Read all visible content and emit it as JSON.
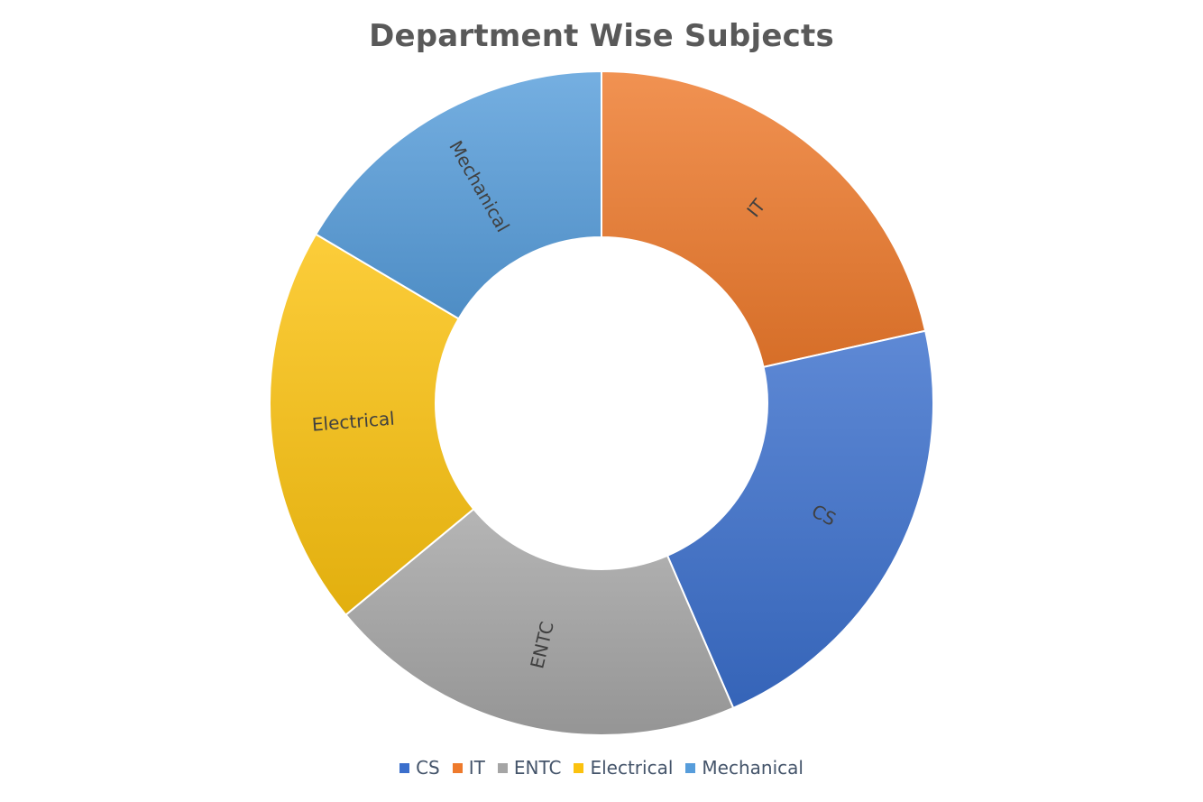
{
  "chart_data": {
    "type": "pie",
    "variant": "donut",
    "title": "Department Wise Subjects",
    "categories": [
      "CS",
      "IT",
      "ENTC",
      "Electrical",
      "Mechanical"
    ],
    "values": [
      22,
      21.5,
      20.5,
      19.5,
      16.5
    ],
    "colors": [
      "#3b6fcc",
      "#ee7a2c",
      "#a5a5a5",
      "#fbc20f",
      "#579ddb"
    ],
    "slice_order": [
      "IT",
      "CS",
      "ENTC",
      "Electrical",
      "Mechanical"
    ],
    "data_labels": [
      "IT",
      "CS",
      "ENTC",
      "Electrical",
      "Mechanical"
    ],
    "legend": {
      "position": "bottom",
      "entries": [
        "CS",
        "IT",
        "ENTC",
        "Electrical",
        "Mechanical"
      ]
    }
  }
}
